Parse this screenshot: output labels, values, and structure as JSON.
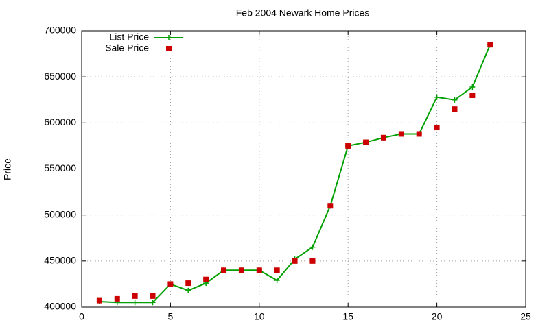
{
  "chart_data": {
    "type": "line",
    "title": "Feb 2004 Newark Home Prices",
    "y_label": "Price",
    "x": [
      1,
      2,
      3,
      4,
      5,
      6,
      7,
      8,
      9,
      10,
      11,
      12,
      13,
      14,
      15,
      16,
      17,
      18,
      19,
      20,
      21,
      22,
      23
    ],
    "series": [
      {
        "name": "List Price",
        "color": "#00a000",
        "marker": "plus",
        "line": true,
        "values": [
          406000,
          405000,
          405000,
          405000,
          425000,
          418000,
          426000,
          440000,
          440000,
          440000,
          429000,
          452000,
          465000,
          510000,
          575000,
          579000,
          584000,
          588000,
          588000,
          628000,
          625000,
          639000,
          685000
        ]
      },
      {
        "name": "Sale Price",
        "color": "#cc0000",
        "marker": "square",
        "line": false,
        "values": [
          407000,
          409000,
          412000,
          412000,
          425000,
          426000,
          430000,
          440000,
          440000,
          440000,
          440000,
          450000,
          450000,
          510000,
          575000,
          579000,
          584000,
          588000,
          588000,
          595000,
          615000,
          630000,
          685000
        ]
      }
    ],
    "xlim": [
      0,
      25
    ],
    "xticks": [
      0,
      5,
      10,
      15,
      20,
      25
    ],
    "ylim": [
      400000,
      700000
    ],
    "yticks": [
      400000,
      450000,
      500000,
      550000,
      600000,
      650000,
      700000
    ],
    "grid": true,
    "legend": "top-left"
  }
}
